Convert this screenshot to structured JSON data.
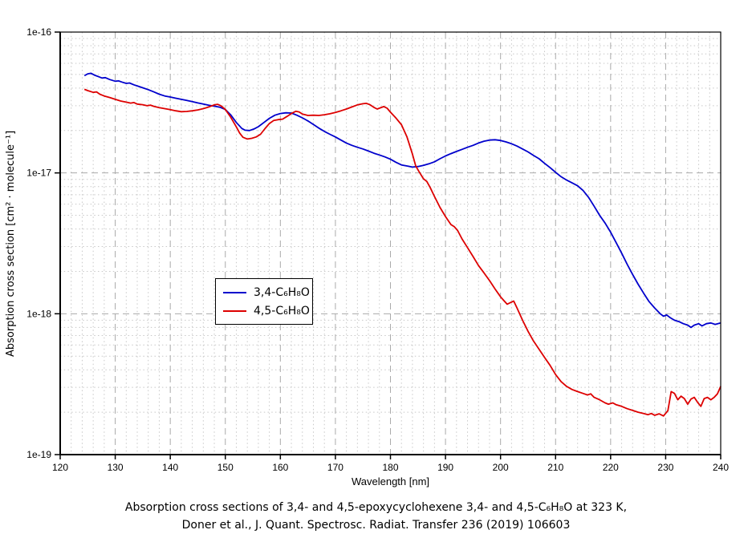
{
  "chart_data": {
    "type": "line",
    "xlabel": "Wavelength [nm]",
    "ylabel": "Absorption cross section [cm² · molecule⁻¹]",
    "xlim": [
      120,
      240
    ],
    "ylim": [
      1e-19,
      1e-16
    ],
    "y_scale": "log",
    "grid": "major dashed, log-minor dotted",
    "legend_position": "inside-left-middle",
    "background": "#FFFFFF",
    "axis_color": "#000000",
    "grid_color_major": "#AAAAAA",
    "grid_color_minor": "#C8C8C8",
    "x_ticks": [
      120,
      130,
      140,
      150,
      160,
      170,
      180,
      190,
      200,
      210,
      220,
      230,
      240
    ],
    "y_ticks": [
      {
        "label": "1e-16",
        "value": 1e-16
      },
      {
        "label": "1e-17",
        "value": 1e-17
      },
      {
        "label": "1e-18",
        "value": 1e-18
      },
      {
        "label": "1e-19",
        "value": 1e-19
      }
    ],
    "series": [
      {
        "name": "3,4-C₆H₈O",
        "color": "#0000CC",
        "points": [
          [
            124.4,
            4.9e-17
          ],
          [
            125,
            5.05e-17
          ],
          [
            125.6,
            5.1e-17
          ],
          [
            126.2,
            4.95e-17
          ],
          [
            127,
            4.82e-17
          ],
          [
            127.6,
            4.72e-17
          ],
          [
            128.2,
            4.75e-17
          ],
          [
            129,
            4.6e-17
          ],
          [
            130,
            4.48e-17
          ],
          [
            130.6,
            4.5e-17
          ],
          [
            131.2,
            4.42e-17
          ],
          [
            132,
            4.32e-17
          ],
          [
            132.6,
            4.35e-17
          ],
          [
            133.4,
            4.22e-17
          ],
          [
            134.2,
            4.12e-17
          ],
          [
            135,
            4.02e-17
          ],
          [
            136,
            3.9e-17
          ],
          [
            137,
            3.76e-17
          ],
          [
            138,
            3.62e-17
          ],
          [
            139,
            3.52e-17
          ],
          [
            140,
            3.46e-17
          ],
          [
            141,
            3.39e-17
          ],
          [
            142,
            3.33e-17
          ],
          [
            143,
            3.27e-17
          ],
          [
            144,
            3.21e-17
          ],
          [
            145,
            3.14e-17
          ],
          [
            146,
            3.08e-17
          ],
          [
            147,
            3.02e-17
          ],
          [
            148,
            2.98e-17
          ],
          [
            149,
            2.93e-17
          ],
          [
            150,
            2.82e-17
          ],
          [
            151,
            2.58e-17
          ],
          [
            152,
            2.28e-17
          ],
          [
            153,
            2.07e-17
          ],
          [
            153.6,
            2.01e-17
          ],
          [
            154.4,
            2e-17
          ],
          [
            155.2,
            2.05e-17
          ],
          [
            156,
            2.13e-17
          ],
          [
            157,
            2.28e-17
          ],
          [
            158,
            2.44e-17
          ],
          [
            159,
            2.57e-17
          ],
          [
            160,
            2.64e-17
          ],
          [
            161,
            2.67e-17
          ],
          [
            162,
            2.66e-17
          ],
          [
            163,
            2.57e-17
          ],
          [
            164,
            2.46e-17
          ],
          [
            165,
            2.34e-17
          ],
          [
            166,
            2.21e-17
          ],
          [
            167,
            2.08e-17
          ],
          [
            168,
            1.97e-17
          ],
          [
            169,
            1.88e-17
          ],
          [
            170,
            1.8e-17
          ],
          [
            171,
            1.71e-17
          ],
          [
            172,
            1.63e-17
          ],
          [
            173,
            1.57e-17
          ],
          [
            174,
            1.52e-17
          ],
          [
            175,
            1.48e-17
          ],
          [
            176,
            1.43e-17
          ],
          [
            177,
            1.38e-17
          ],
          [
            178,
            1.34e-17
          ],
          [
            179,
            1.3e-17
          ],
          [
            180,
            1.25e-17
          ],
          [
            181,
            1.19e-17
          ],
          [
            182,
            1.14e-17
          ],
          [
            183,
            1.12e-17
          ],
          [
            184,
            1.1e-17
          ],
          [
            185,
            1.11e-17
          ],
          [
            186,
            1.13e-17
          ],
          [
            187,
            1.16e-17
          ],
          [
            188,
            1.2e-17
          ],
          [
            189,
            1.26e-17
          ],
          [
            190,
            1.32e-17
          ],
          [
            191,
            1.37e-17
          ],
          [
            192,
            1.42e-17
          ],
          [
            193,
            1.47e-17
          ],
          [
            194,
            1.52e-17
          ],
          [
            195,
            1.57e-17
          ],
          [
            196,
            1.63e-17
          ],
          [
            197,
            1.68e-17
          ],
          [
            198,
            1.71e-17
          ],
          [
            199,
            1.72e-17
          ],
          [
            200,
            1.7e-17
          ],
          [
            201,
            1.66e-17
          ],
          [
            202,
            1.61e-17
          ],
          [
            203,
            1.55e-17
          ],
          [
            204,
            1.48e-17
          ],
          [
            205,
            1.41e-17
          ],
          [
            206,
            1.33e-17
          ],
          [
            207,
            1.26e-17
          ],
          [
            208,
            1.17e-17
          ],
          [
            209,
            1.09e-17
          ],
          [
            210,
            1.01e-17
          ],
          [
            211,
            9.4e-18
          ],
          [
            212,
            8.9e-18
          ],
          [
            213,
            8.5e-18
          ],
          [
            214,
            8.1e-18
          ],
          [
            215,
            7.5e-18
          ],
          [
            216,
            6.7e-18
          ],
          [
            217,
            5.8e-18
          ],
          [
            218,
            5e-18
          ],
          [
            219,
            4.4e-18
          ],
          [
            220,
            3.8e-18
          ],
          [
            221,
            3.2e-18
          ],
          [
            222,
            2.7e-18
          ],
          [
            223,
            2.25e-18
          ],
          [
            224,
            1.9e-18
          ],
          [
            225,
            1.62e-18
          ],
          [
            226,
            1.4e-18
          ],
          [
            227,
            1.22e-18
          ],
          [
            228,
            1.1e-18
          ],
          [
            229,
            1e-18
          ],
          [
            229.6,
            9.6e-19
          ],
          [
            230.2,
            9.8e-19
          ],
          [
            230.8,
            9.4e-19
          ],
          [
            231.6,
            9e-19
          ],
          [
            232.4,
            8.8e-19
          ],
          [
            233.2,
            8.5e-19
          ],
          [
            234,
            8.3e-19
          ],
          [
            234.6,
            8e-19
          ],
          [
            235.2,
            8.3e-19
          ],
          [
            236,
            8.5e-19
          ],
          [
            236.6,
            8.2e-19
          ],
          [
            237.4,
            8.5e-19
          ],
          [
            238.2,
            8.6e-19
          ],
          [
            239,
            8.4e-19
          ],
          [
            240,
            8.6e-19
          ]
        ]
      },
      {
        "name": "4,5-C₆H₈O",
        "color": "#DD0000",
        "points": [
          [
            124.4,
            3.92e-17
          ],
          [
            125,
            3.84e-17
          ],
          [
            126,
            3.73e-17
          ],
          [
            126.6,
            3.76e-17
          ],
          [
            127.2,
            3.62e-17
          ],
          [
            128,
            3.52e-17
          ],
          [
            129,
            3.43e-17
          ],
          [
            130,
            3.33e-17
          ],
          [
            131,
            3.24e-17
          ],
          [
            132,
            3.18e-17
          ],
          [
            132.8,
            3.13e-17
          ],
          [
            133.4,
            3.16e-17
          ],
          [
            134,
            3.08e-17
          ],
          [
            135,
            3.05e-17
          ],
          [
            135.8,
            3e-17
          ],
          [
            136.4,
            3.03e-17
          ],
          [
            137,
            2.97e-17
          ],
          [
            138,
            2.91e-17
          ],
          [
            139,
            2.86e-17
          ],
          [
            140,
            2.81e-17
          ],
          [
            141,
            2.76e-17
          ],
          [
            142,
            2.72e-17
          ],
          [
            143,
            2.73e-17
          ],
          [
            144,
            2.76e-17
          ],
          [
            145,
            2.8e-17
          ],
          [
            146,
            2.86e-17
          ],
          [
            147,
            2.94e-17
          ],
          [
            148,
            3.04e-17
          ],
          [
            148.6,
            3.07e-17
          ],
          [
            149.2,
            3e-17
          ],
          [
            150,
            2.82e-17
          ],
          [
            151,
            2.48e-17
          ],
          [
            152,
            2.12e-17
          ],
          [
            152.6,
            1.92e-17
          ],
          [
            153.2,
            1.79e-17
          ],
          [
            154,
            1.74e-17
          ],
          [
            154.8,
            1.76e-17
          ],
          [
            155.6,
            1.8e-17
          ],
          [
            156.4,
            1.88e-17
          ],
          [
            157.2,
            2.06e-17
          ],
          [
            158,
            2.24e-17
          ],
          [
            158.8,
            2.36e-17
          ],
          [
            159.6,
            2.39e-17
          ],
          [
            160.4,
            2.41e-17
          ],
          [
            161.2,
            2.52e-17
          ],
          [
            162,
            2.64e-17
          ],
          [
            162.8,
            2.74e-17
          ],
          [
            163.4,
            2.71e-17
          ],
          [
            164,
            2.62e-17
          ],
          [
            165,
            2.56e-17
          ],
          [
            166,
            2.57e-17
          ],
          [
            167,
            2.56e-17
          ],
          [
            168,
            2.59e-17
          ],
          [
            169,
            2.63e-17
          ],
          [
            170,
            2.69e-17
          ],
          [
            171,
            2.76e-17
          ],
          [
            172,
            2.84e-17
          ],
          [
            173,
            2.94e-17
          ],
          [
            174,
            3.04e-17
          ],
          [
            175,
            3.1e-17
          ],
          [
            175.6,
            3.12e-17
          ],
          [
            176.2,
            3.06e-17
          ],
          [
            177,
            2.92e-17
          ],
          [
            177.6,
            2.84e-17
          ],
          [
            178.2,
            2.9e-17
          ],
          [
            178.8,
            2.96e-17
          ],
          [
            179.4,
            2.88e-17
          ],
          [
            180,
            2.7e-17
          ],
          [
            181,
            2.45e-17
          ],
          [
            182,
            2.2e-17
          ],
          [
            183,
            1.8e-17
          ],
          [
            184,
            1.36e-17
          ],
          [
            184.6,
            1.12e-17
          ],
          [
            185.2,
            1.02e-17
          ],
          [
            186,
            9.1e-18
          ],
          [
            186.6,
            8.7e-18
          ],
          [
            187.2,
            7.9e-18
          ],
          [
            188,
            6.8e-18
          ],
          [
            189,
            5.7e-18
          ],
          [
            190,
            4.9e-18
          ],
          [
            191,
            4.3e-18
          ],
          [
            191.6,
            4.15e-18
          ],
          [
            192.2,
            3.9e-18
          ],
          [
            193,
            3.4e-18
          ],
          [
            194,
            2.95e-18
          ],
          [
            195,
            2.55e-18
          ],
          [
            196,
            2.2e-18
          ],
          [
            197,
            1.95e-18
          ],
          [
            198,
            1.72e-18
          ],
          [
            199,
            1.5e-18
          ],
          [
            200,
            1.32e-18
          ],
          [
            200.6,
            1.24e-18
          ],
          [
            201.2,
            1.17e-18
          ],
          [
            201.8,
            1.2e-18
          ],
          [
            202.4,
            1.23e-18
          ],
          [
            203,
            1.1e-18
          ],
          [
            204,
            9e-19
          ],
          [
            205,
            7.5e-19
          ],
          [
            206,
            6.4e-19
          ],
          [
            207,
            5.6e-19
          ],
          [
            208,
            4.9e-19
          ],
          [
            209,
            4.3e-19
          ],
          [
            210,
            3.7e-19
          ],
          [
            211,
            3.3e-19
          ],
          [
            212,
            3.05e-19
          ],
          [
            213,
            2.9e-19
          ],
          [
            214,
            2.8e-19
          ],
          [
            215,
            2.72e-19
          ],
          [
            215.8,
            2.65e-19
          ],
          [
            216.4,
            2.7e-19
          ],
          [
            217,
            2.55e-19
          ],
          [
            218,
            2.45e-19
          ],
          [
            219,
            2.33e-19
          ],
          [
            219.6,
            2.28e-19
          ],
          [
            220.4,
            2.33e-19
          ],
          [
            221,
            2.26e-19
          ],
          [
            222,
            2.2e-19
          ],
          [
            223,
            2.12e-19
          ],
          [
            224,
            2.06e-19
          ],
          [
            225,
            2e-19
          ],
          [
            226,
            1.96e-19
          ],
          [
            226.8,
            1.92e-19
          ],
          [
            227.4,
            1.96e-19
          ],
          [
            228,
            1.9e-19
          ],
          [
            228.8,
            1.95e-19
          ],
          [
            229.6,
            1.88e-19
          ],
          [
            230.4,
            2.05e-19
          ],
          [
            231,
            2.8e-19
          ],
          [
            231.6,
            2.72e-19
          ],
          [
            232.2,
            2.45e-19
          ],
          [
            232.8,
            2.6e-19
          ],
          [
            233.4,
            2.5e-19
          ],
          [
            234,
            2.28e-19
          ],
          [
            234.6,
            2.48e-19
          ],
          [
            235.2,
            2.55e-19
          ],
          [
            235.8,
            2.35e-19
          ],
          [
            236.4,
            2.2e-19
          ],
          [
            237,
            2.5e-19
          ],
          [
            237.6,
            2.55e-19
          ],
          [
            238.2,
            2.45e-19
          ],
          [
            238.8,
            2.55e-19
          ],
          [
            239.4,
            2.7e-19
          ],
          [
            240,
            3.05e-19
          ]
        ]
      }
    ]
  },
  "caption": {
    "line1": "Absorption cross sections of 3,4- and 4,5-epoxycyclohexene 3,4- and 4,5-C₆H₈O at 323 K,",
    "line2": "Doner et al., J. Quant. Spectrosc. Radiat. Transfer 236 (2019) 106603"
  }
}
